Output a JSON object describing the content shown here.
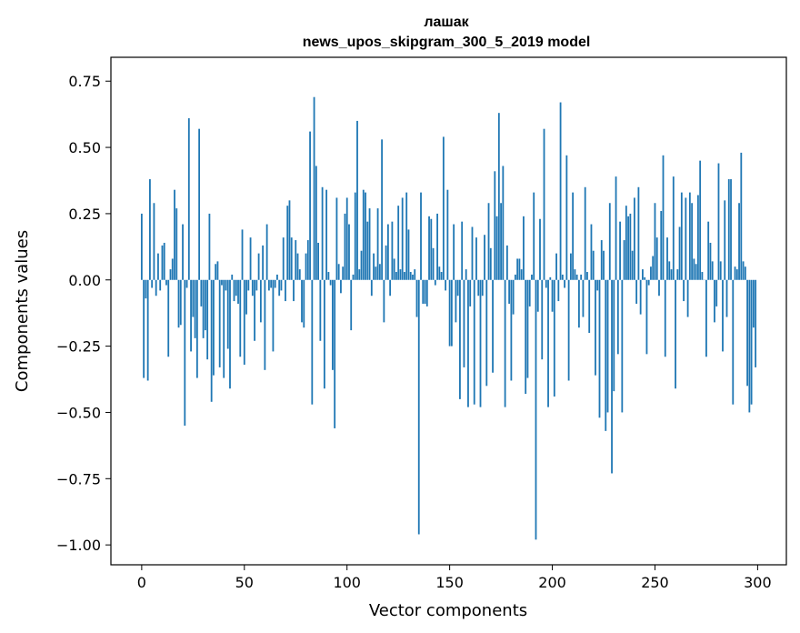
{
  "chart_data": {
    "type": "bar",
    "title": "лашак",
    "subtitle": "news_upos_skipgram_300_5_2019 model",
    "xlabel": "Vector components",
    "ylabel": "Components values",
    "xlim": [
      -15,
      314
    ],
    "ylim": [
      -1.075,
      0.84
    ],
    "xticks": [
      0,
      50,
      100,
      150,
      200,
      250,
      300
    ],
    "xtick_labels": [
      "0",
      "50",
      "100",
      "150",
      "200",
      "250",
      "300"
    ],
    "yticks": [
      -1.0,
      -0.75,
      -0.5,
      -0.25,
      0.0,
      0.25,
      0.5,
      0.75
    ],
    "ytick_labels": [
      "−1.00",
      "−0.75",
      "−0.50",
      "−0.25",
      "0.00",
      "0.25",
      "0.50",
      "0.75"
    ],
    "bar_color": "#1f77b4",
    "grid": false,
    "values": [
      0.25,
      -0.37,
      -0.07,
      -0.38,
      0.38,
      -0.03,
      0.29,
      -0.06,
      0.1,
      -0.04,
      0.13,
      0.14,
      -0.02,
      -0.29,
      0.04,
      0.08,
      0.34,
      0.27,
      -0.18,
      -0.17,
      0.21,
      -0.55,
      -0.03,
      0.61,
      -0.27,
      -0.14,
      -0.22,
      -0.37,
      0.57,
      -0.1,
      -0.22,
      -0.19,
      -0.3,
      0.25,
      -0.46,
      -0.36,
      0.06,
      0.07,
      -0.33,
      -0.02,
      -0.37,
      -0.04,
      -0.26,
      -0.41,
      0.02,
      -0.08,
      -0.06,
      -0.09,
      -0.29,
      0.19,
      -0.32,
      -0.13,
      -0.04,
      0.16,
      -0.06,
      -0.23,
      -0.04,
      0.1,
      -0.16,
      0.13,
      -0.34,
      0.21,
      -0.04,
      -0.03,
      -0.27,
      -0.03,
      0.02,
      -0.06,
      -0.04,
      0.16,
      -0.08,
      0.28,
      0.3,
      0.16,
      -0.08,
      0.15,
      0.1,
      0.04,
      -0.16,
      -0.18,
      0.1,
      0.15,
      0.56,
      -0.47,
      0.69,
      0.43,
      0.14,
      -0.23,
      0.35,
      -0.41,
      0.34,
      0.03,
      -0.02,
      -0.34,
      -0.56,
      0.31,
      0.06,
      -0.05,
      0.05,
      0.25,
      0.31,
      0.21,
      -0.19,
      0.02,
      0.33,
      0.6,
      0.04,
      0.11,
      0.34,
      0.33,
      0.22,
      0.27,
      -0.06,
      0.1,
      0.05,
      0.27,
      0.06,
      0.53,
      -0.16,
      0.13,
      0.21,
      -0.06,
      0.22,
      0.08,
      0.03,
      0.28,
      0.04,
      0.31,
      0.03,
      0.33,
      0.19,
      0.03,
      0.02,
      0.04,
      -0.14,
      -0.96,
      0.33,
      -0.09,
      -0.09,
      -0.1,
      0.24,
      0.23,
      0.12,
      -0.02,
      0.25,
      0.05,
      0.03,
      0.54,
      -0.04,
      0.34,
      -0.25,
      -0.25,
      0.21,
      -0.16,
      -0.06,
      -0.45,
      0.22,
      -0.33,
      0.04,
      -0.48,
      -0.1,
      0.2,
      -0.47,
      0.16,
      -0.06,
      -0.48,
      -0.06,
      0.17,
      -0.4,
      0.29,
      0.12,
      -0.35,
      0.41,
      0.24,
      0.63,
      0.29,
      0.43,
      -0.48,
      0.13,
      -0.09,
      -0.38,
      -0.13,
      0.02,
      0.08,
      0.08,
      0.04,
      0.24,
      -0.43,
      -0.37,
      -0.1,
      0.02,
      0.33,
      -0.98,
      -0.12,
      0.23,
      -0.3,
      0.57,
      -0.03,
      -0.48,
      0.01,
      -0.12,
      -0.44,
      0.1,
      -0.08,
      0.67,
      0.02,
      -0.03,
      0.47,
      -0.38,
      0.1,
      0.33,
      0.04,
      0.02,
      -0.18,
      0.02,
      -0.14,
      0.35,
      0.03,
      -0.2,
      0.21,
      0.11,
      -0.36,
      -0.04,
      -0.52,
      0.15,
      0.11,
      -0.57,
      -0.5,
      0.29,
      -0.73,
      -0.42,
      0.39,
      -0.28,
      0.22,
      -0.5,
      0.15,
      0.28,
      0.24,
      0.25,
      0.11,
      0.31,
      -0.09,
      0.35,
      -0.13,
      0.04,
      0.01,
      -0.28,
      -0.02,
      0.05,
      0.09,
      0.29,
      0.16,
      -0.06,
      0.26,
      0.47,
      -0.29,
      0.16,
      0.07,
      0.04,
      0.39,
      -0.41,
      0.04,
      0.2,
      0.33,
      -0.08,
      0.31,
      -0.14,
      0.33,
      0.29,
      0.08,
      0.06,
      0.32,
      0.45,
      0.03,
      0.0,
      -0.29,
      0.22,
      0.14,
      0.07,
      -0.16,
      -0.1,
      0.44,
      0.07,
      -0.27,
      0.3,
      -0.14,
      0.38,
      0.38,
      -0.47,
      0.05,
      0.04,
      0.29,
      0.48,
      0.07,
      0.05,
      -0.4,
      -0.5,
      -0.47,
      -0.18,
      -0.33
    ]
  }
}
